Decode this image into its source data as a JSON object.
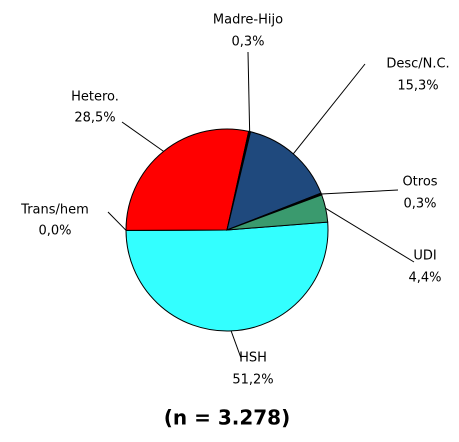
{
  "chart_data": {
    "type": "pie",
    "categories": [
      "HSH",
      "Trans/hem",
      "Hetero.",
      "Madre-Hijo",
      "Desc/N.C.",
      "Otros",
      "UDI"
    ],
    "values": [
      51.2,
      0.0,
      28.5,
      0.3,
      15.3,
      0.3,
      4.4
    ],
    "value_labels": [
      "51,2%",
      "0,0%",
      "28,5%",
      "0,3%",
      "15,3%",
      "0,3%",
      "4,4%"
    ],
    "colors": [
      "#33ffff",
      "#999999",
      "#ff0000",
      "#000000",
      "#1f497d",
      "#000000",
      "#3a9a6e"
    ],
    "annotation": "(n = 3.278)"
  }
}
